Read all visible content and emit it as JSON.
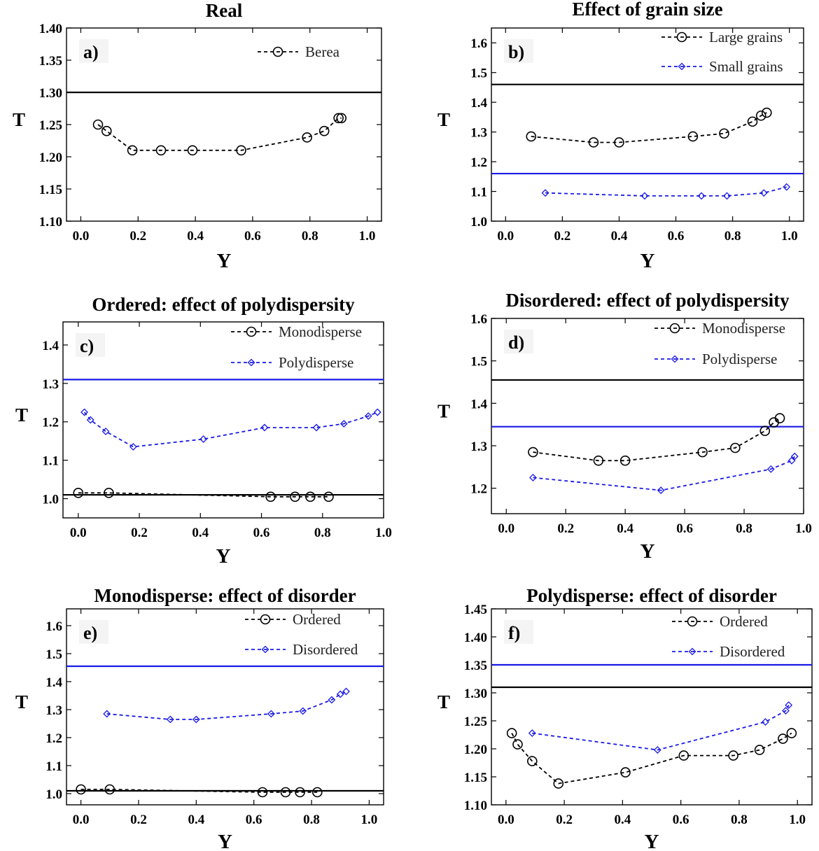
{
  "figure": {
    "colors": {
      "black_series": "#000000",
      "blue_series": "#1a1ae6",
      "axes": "#000000"
    }
  },
  "chart_data": [
    {
      "type": "line",
      "panel_label": "a)",
      "title": "Real",
      "xlabel": "Y",
      "ylabel": "T",
      "xlim": [
        -0.05,
        1.05
      ],
      "ylim": [
        1.1,
        1.4
      ],
      "x_ticks": [
        "0.0",
        "0.2",
        "0.4",
        "0.6",
        "0.8",
        "1.0"
      ],
      "y_ticks": [
        "1.10",
        "1.15",
        "1.20",
        "1.25",
        "1.30",
        "1.35",
        "1.40"
      ],
      "legend_position": "top-right",
      "reference_lines": [
        {
          "y": 1.3,
          "color": "#000000"
        }
      ],
      "series": [
        {
          "name": "Berea",
          "color": "#000000",
          "marker": "circle",
          "dashed": true,
          "x": [
            0.06,
            0.09,
            0.18,
            0.28,
            0.39,
            0.56,
            0.79,
            0.85,
            0.9,
            0.91
          ],
          "y": [
            1.25,
            1.24,
            1.21,
            1.21,
            1.21,
            1.21,
            1.23,
            1.24,
            1.26,
            1.26
          ]
        }
      ]
    },
    {
      "type": "line",
      "panel_label": "b)",
      "title": "Effect of grain size",
      "xlabel": "Y",
      "ylabel": "T",
      "xlim": [
        -0.05,
        1.05
      ],
      "ylim": [
        1.0,
        1.65
      ],
      "x_ticks": [
        "0.0",
        "0.2",
        "0.4",
        "0.6",
        "0.8",
        "1.0"
      ],
      "y_ticks": [
        "1.0",
        "1.1",
        "1.2",
        "1.3",
        "1.4",
        "1.5",
        "1.6"
      ],
      "legend_position": "top-right",
      "reference_lines": [
        {
          "y": 1.46,
          "color": "#000000"
        },
        {
          "y": 1.16,
          "color": "#1a1ae6"
        }
      ],
      "series": [
        {
          "name": "Large grains",
          "color": "#000000",
          "marker": "circle",
          "dashed": true,
          "x": [
            0.09,
            0.31,
            0.4,
            0.66,
            0.77,
            0.87,
            0.9,
            0.92
          ],
          "y": [
            1.285,
            1.265,
            1.265,
            1.285,
            1.295,
            1.335,
            1.355,
            1.365
          ]
        },
        {
          "name": "Small grains",
          "color": "#1a1ae6",
          "marker": "diamond",
          "dashed": true,
          "x": [
            0.14,
            0.49,
            0.69,
            0.78,
            0.91,
            0.99
          ],
          "y": [
            1.095,
            1.085,
            1.085,
            1.085,
            1.095,
            1.115
          ]
        }
      ]
    },
    {
      "type": "line",
      "panel_label": "c)",
      "title": "Ordered: effect of polydispersity",
      "xlabel": "Y",
      "ylabel": "T",
      "xlim": [
        -0.05,
        1.0
      ],
      "ylim": [
        0.95,
        1.46
      ],
      "x_ticks": [
        "0.0",
        "0.2",
        "0.4",
        "0.6",
        "0.8",
        "1.0"
      ],
      "y_ticks": [
        "1.0",
        "1.1",
        "1.2",
        "1.3",
        "1.4"
      ],
      "legend_position": "top-right",
      "reference_lines": [
        {
          "y": 1.31,
          "color": "#1a1ae6"
        },
        {
          "y": 1.01,
          "color": "#000000"
        }
      ],
      "series": [
        {
          "name": "Monodisperse",
          "color": "#000000",
          "marker": "circle",
          "dashed": true,
          "x": [
            0.0,
            0.1,
            0.63,
            0.71,
            0.76,
            0.82
          ],
          "y": [
            1.015,
            1.015,
            1.005,
            1.005,
            1.005,
            1.005
          ]
        },
        {
          "name": "Polydisperse",
          "color": "#1a1ae6",
          "marker": "diamond",
          "dashed": true,
          "x": [
            0.02,
            0.04,
            0.09,
            0.18,
            0.41,
            0.61,
            0.78,
            0.87,
            0.95,
            0.98
          ],
          "y": [
            1.225,
            1.205,
            1.175,
            1.135,
            1.155,
            1.185,
            1.185,
            1.195,
            1.215,
            1.225
          ]
        }
      ]
    },
    {
      "type": "line",
      "panel_label": "d)",
      "title": "Disordered: effect of polydispersity",
      "xlabel": "Y",
      "ylabel": "T",
      "xlim": [
        -0.05,
        1.0
      ],
      "ylim": [
        1.14,
        1.6
      ],
      "x_ticks": [
        "0.0",
        "0.2",
        "0.4",
        "0.6",
        "0.8",
        "1.0"
      ],
      "y_ticks": [
        "1.2",
        "1.3",
        "1.4",
        "1.5",
        "1.6"
      ],
      "legend_position": "top-right",
      "reference_lines": [
        {
          "y": 1.455,
          "color": "#000000"
        },
        {
          "y": 1.345,
          "color": "#1a1ae6"
        }
      ],
      "series": [
        {
          "name": "Monodisperse",
          "color": "#000000",
          "marker": "circle",
          "dashed": true,
          "x": [
            0.09,
            0.31,
            0.4,
            0.66,
            0.77,
            0.87,
            0.9,
            0.92
          ],
          "y": [
            1.285,
            1.265,
            1.265,
            1.285,
            1.295,
            1.335,
            1.355,
            1.365
          ]
        },
        {
          "name": "Polydisperse",
          "color": "#1a1ae6",
          "marker": "diamond",
          "dashed": true,
          "x": [
            0.09,
            0.52,
            0.89,
            0.96,
            0.97
          ],
          "y": [
            1.225,
            1.195,
            1.245,
            1.265,
            1.275
          ]
        }
      ]
    },
    {
      "type": "line",
      "panel_label": "e)",
      "title": "Monodisperse: effect of disorder",
      "xlabel": "Y",
      "ylabel": "T",
      "xlim": [
        -0.05,
        1.05
      ],
      "ylim": [
        0.96,
        1.66
      ],
      "x_ticks": [
        "0.0",
        "0.2",
        "0.4",
        "0.6",
        "0.8",
        "1.0"
      ],
      "y_ticks": [
        "1.0",
        "1.1",
        "1.2",
        "1.3",
        "1.4",
        "1.5",
        "1.6"
      ],
      "legend_position": "top-right",
      "reference_lines": [
        {
          "y": 1.455,
          "color": "#1a1ae6"
        },
        {
          "y": 1.01,
          "color": "#000000"
        }
      ],
      "series": [
        {
          "name": "Ordered",
          "color": "#000000",
          "marker": "circle",
          "dashed": true,
          "x": [
            0.0,
            0.1,
            0.63,
            0.71,
            0.76,
            0.82
          ],
          "y": [
            1.015,
            1.015,
            1.005,
            1.005,
            1.005,
            1.005
          ]
        },
        {
          "name": "Disordered",
          "color": "#1a1ae6",
          "marker": "diamond",
          "dashed": true,
          "x": [
            0.09,
            0.31,
            0.4,
            0.66,
            0.77,
            0.87,
            0.9,
            0.92
          ],
          "y": [
            1.285,
            1.265,
            1.265,
            1.285,
            1.295,
            1.335,
            1.355,
            1.365
          ]
        }
      ]
    },
    {
      "type": "line",
      "panel_label": "f)",
      "title": "Polydisperse: effect of disorder",
      "xlabel": "Y",
      "ylabel": "T",
      "xlim": [
        -0.05,
        1.05
      ],
      "ylim": [
        1.1,
        1.45
      ],
      "x_ticks": [
        "0.0",
        "0.2",
        "0.4",
        "0.6",
        "0.8",
        "1.0"
      ],
      "y_ticks": [
        "1.10",
        "1.15",
        "1.20",
        "1.25",
        "1.30",
        "1.35",
        "1.40",
        "1.45"
      ],
      "legend_position": "top-right",
      "reference_lines": [
        {
          "y": 1.35,
          "color": "#1a1ae6"
        },
        {
          "y": 1.31,
          "color": "#000000"
        }
      ],
      "series": [
        {
          "name": "Ordered",
          "color": "#000000",
          "marker": "circle",
          "dashed": true,
          "x": [
            0.02,
            0.04,
            0.09,
            0.18,
            0.41,
            0.61,
            0.78,
            0.87,
            0.95,
            0.98
          ],
          "y": [
            1.228,
            1.208,
            1.178,
            1.138,
            1.158,
            1.188,
            1.188,
            1.198,
            1.218,
            1.228
          ]
        },
        {
          "name": "Disordered",
          "color": "#1a1ae6",
          "marker": "diamond",
          "dashed": true,
          "x": [
            0.09,
            0.52,
            0.89,
            0.96,
            0.97
          ],
          "y": [
            1.228,
            1.198,
            1.248,
            1.268,
            1.278
          ]
        }
      ]
    }
  ]
}
